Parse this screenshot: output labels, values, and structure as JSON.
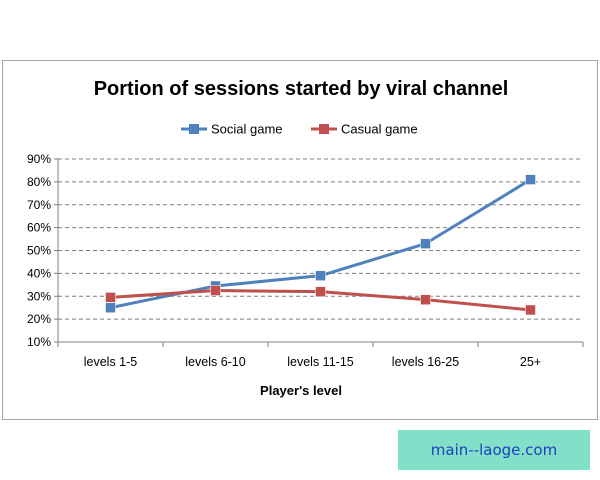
{
  "chart_data": {
    "type": "line",
    "title": "Portion of sessions started by viral channel",
    "xlabel": "Player's level",
    "ylabel": "",
    "categories": [
      "levels 1-5",
      "levels 6-10",
      "levels 11-15",
      "levels 16-25",
      "25+"
    ],
    "ylim": [
      10,
      90
    ],
    "yticks": [
      "10%",
      "20%",
      "30%",
      "40%",
      "50%",
      "60%",
      "70%",
      "80%",
      "90%"
    ],
    "grid": true,
    "legend_position": "top",
    "series": [
      {
        "name": "Social game",
        "values": [
          25,
          34.5,
          39,
          53,
          81
        ],
        "color": "#4f81bd",
        "marker": "square"
      },
      {
        "name": "Casual game",
        "values": [
          29.5,
          32.5,
          32,
          28.5,
          24
        ],
        "color": "#c0504d",
        "marker": "square"
      }
    ]
  },
  "watermark": {
    "text": "main--laoge.com"
  }
}
